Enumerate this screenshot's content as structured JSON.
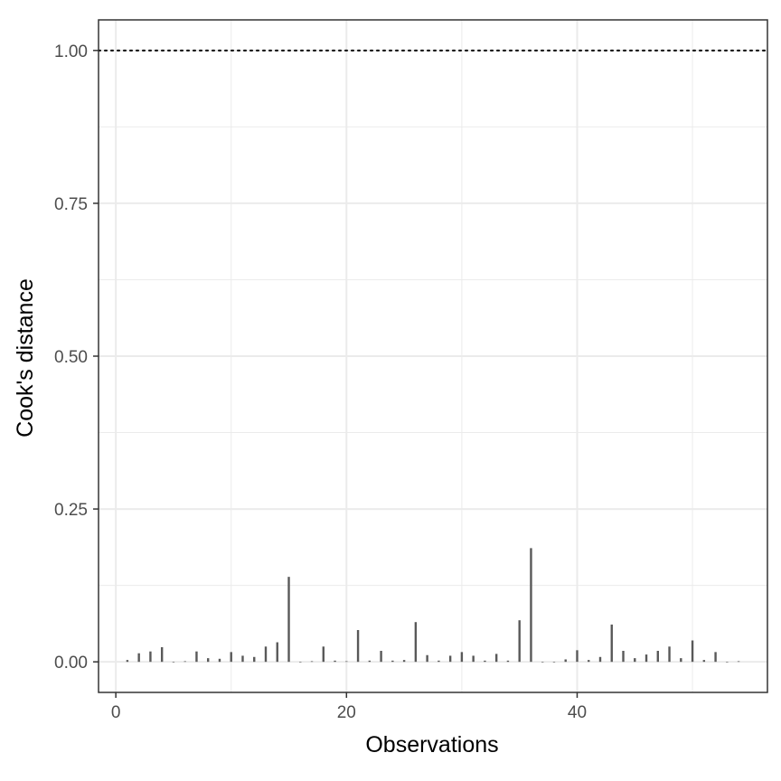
{
  "chart_data": {
    "type": "bar",
    "xlabel": "Observations",
    "ylabel": "Cook's distance",
    "xlim": [
      -1.5,
      56.5
    ],
    "ylim": [
      -0.05,
      1.05
    ],
    "x_ticks": [
      0,
      20,
      40
    ],
    "x_tick_labels": [
      "0",
      "20",
      "40"
    ],
    "y_ticks": [
      0.0,
      0.25,
      0.5,
      0.75,
      1.0
    ],
    "y_tick_labels": [
      "0.00",
      "0.25",
      "0.50",
      "0.75",
      "1.00"
    ],
    "threshold": 1.0,
    "threshold_style": "dotted",
    "grid": true,
    "x": [
      1,
      2,
      3,
      4,
      5,
      6,
      7,
      8,
      9,
      10,
      11,
      12,
      13,
      14,
      15,
      16,
      17,
      18,
      19,
      20,
      21,
      22,
      23,
      24,
      25,
      26,
      27,
      28,
      29,
      30,
      31,
      32,
      33,
      34,
      35,
      36,
      37,
      38,
      39,
      40,
      41,
      42,
      43,
      44,
      45,
      46,
      47,
      48,
      49,
      50,
      51,
      52,
      53,
      54
    ],
    "values": [
      0.003,
      0.014,
      0.017,
      0.024,
      0.0,
      0.001,
      0.017,
      0.006,
      0.005,
      0.016,
      0.01,
      0.008,
      0.025,
      0.032,
      0.139,
      0.0,
      0.001,
      0.025,
      0.002,
      0.001,
      0.052,
      0.002,
      0.018,
      0.002,
      0.003,
      0.065,
      0.011,
      0.002,
      0.01,
      0.016,
      0.01,
      0.002,
      0.013,
      0.002,
      0.068,
      0.186,
      0.0,
      0.0,
      0.004,
      0.019,
      0.003,
      0.008,
      0.061,
      0.018,
      0.006,
      0.012,
      0.018,
      0.025,
      0.006,
      0.035,
      0.003,
      0.016,
      0.0,
      0.001
    ],
    "colors": {
      "bar": "#595959",
      "grid": "#ebebeb",
      "panel_border": "#333333",
      "threshold": "#000000"
    }
  }
}
